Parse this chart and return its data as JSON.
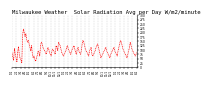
{
  "title": "Milwaukee Weather  Solar Radiation Avg per Day W/m2/minute",
  "title_fontsize": 4.0,
  "line_color": "red",
  "background_color": "#ffffff",
  "grid_color": "#bbbbbb",
  "ylim": [
    0,
    300
  ],
  "yticks": [
    0,
    25,
    50,
    75,
    100,
    125,
    150,
    175,
    200,
    225,
    250,
    275,
    300
  ],
  "values": [
    85,
    60,
    40,
    110,
    75,
    55,
    30,
    90,
    120,
    70,
    50,
    45,
    25,
    185,
    220,
    200,
    175,
    195,
    160,
    145,
    155,
    135,
    115,
    95,
    125,
    75,
    55,
    65,
    45,
    35,
    55,
    70,
    95,
    85,
    65,
    125,
    145,
    135,
    115,
    105,
    95,
    85,
    75,
    95,
    115,
    105,
    85,
    75,
    65,
    95,
    105,
    95,
    85,
    75,
    125,
    115,
    95,
    145,
    135,
    125,
    105,
    85,
    75,
    65,
    75,
    85,
    95,
    115,
    125,
    105,
    95,
    85,
    75,
    95,
    105,
    115,
    125,
    105,
    85,
    75,
    105,
    115,
    95,
    85,
    75,
    95,
    135,
    155,
    145,
    125,
    105,
    95,
    85,
    75,
    65,
    95,
    105,
    115,
    75,
    65,
    75,
    85,
    95,
    115,
    125,
    135,
    115,
    95,
    75,
    55,
    65,
    75,
    85,
    95,
    105,
    115,
    95,
    85,
    75,
    65,
    55,
    75,
    85,
    95,
    105,
    115,
    95,
    85,
    75,
    65,
    95,
    115,
    135,
    155,
    145,
    125,
    105,
    95,
    85,
    75,
    65,
    55,
    75,
    95,
    115,
    145,
    125,
    105,
    95,
    85,
    75,
    65,
    75,
    85
  ],
  "xtick_labels": [
    "1/1",
    "2/1",
    "3/1",
    "4/1",
    "5/1",
    "6/1",
    "7/1",
    "8/1",
    "9/1",
    "10/1",
    "11/1",
    "12/1",
    "1/1",
    "2/1",
    "3/1",
    "4/1",
    "5/1",
    "6/1",
    "7/1",
    "8/1",
    "9/1",
    "10/1",
    "11/1",
    "12/1",
    "1/1",
    "2/1",
    "3/1",
    "4/1",
    "5/1",
    "6/1"
  ]
}
